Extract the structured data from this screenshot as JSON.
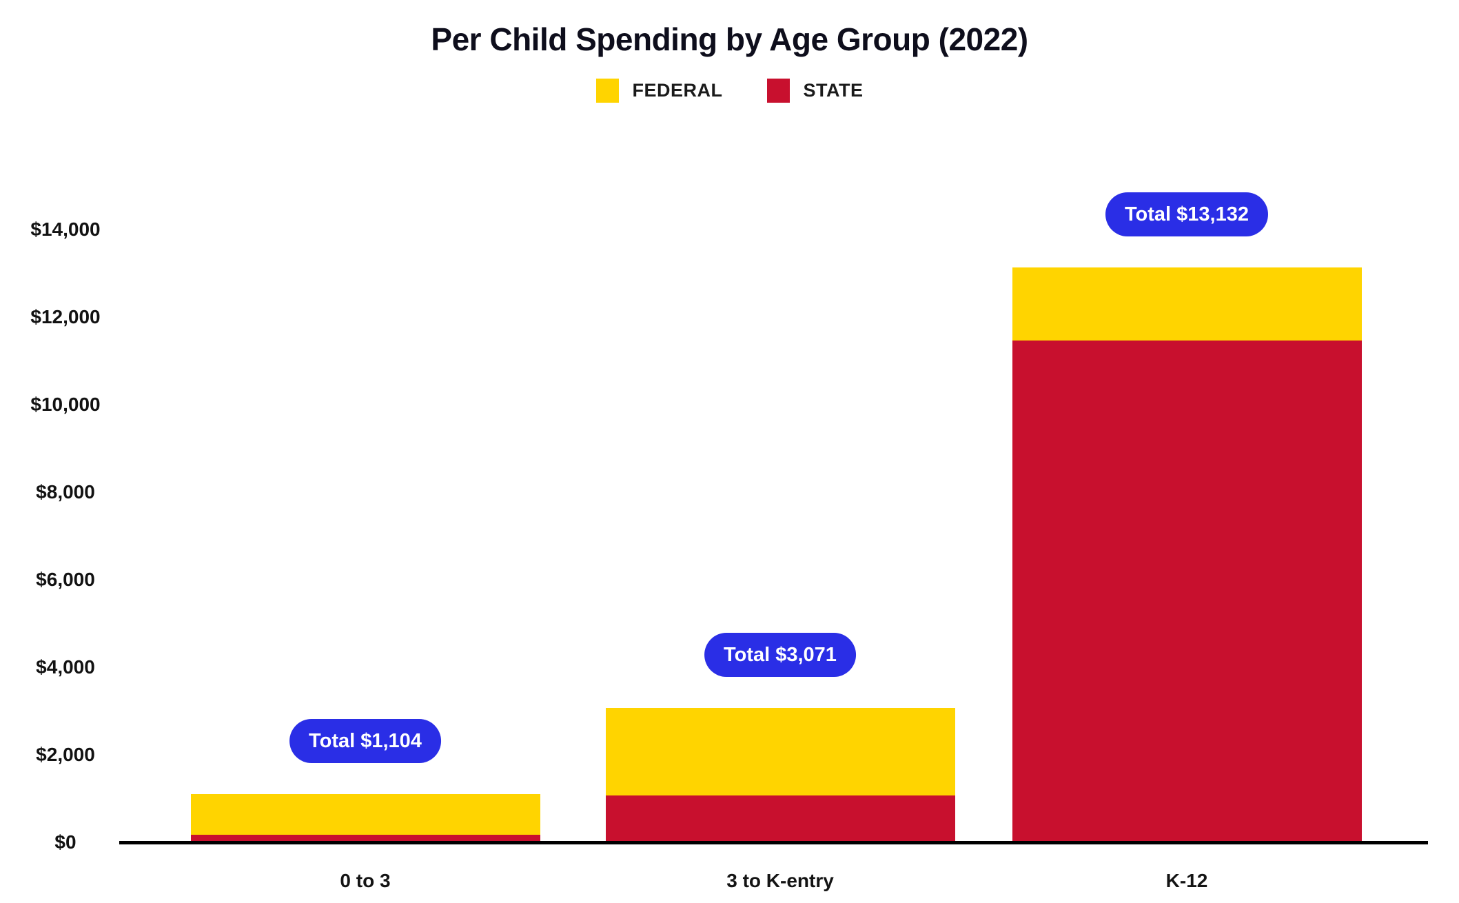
{
  "title": "Per Child Spending by Age Group (2022)",
  "colors": {
    "federal": "#FFD400",
    "state": "#C8102E",
    "badge_background": "#2A2EE6",
    "badge_text": "#FFFFFF",
    "axis": "#000000",
    "text": "#121212"
  },
  "legend": {
    "items": [
      {
        "label": "FEDERAL",
        "color": "#FFD400"
      },
      {
        "label": "STATE",
        "color": "#C8102E"
      }
    ]
  },
  "chart_data": {
    "type": "bar",
    "stacked": true,
    "title": "Per Child Spending by Age Group (2022)",
    "categories": [
      "0 to 3",
      "3 to K-entry",
      "K-12"
    ],
    "series": [
      {
        "name": "FEDERAL",
        "color": "#FFD400",
        "values": [
          926,
          2000,
          1674
        ]
      },
      {
        "name": "STATE",
        "color": "#C8102E",
        "values": [
          178,
          1071,
          11458
        ]
      }
    ],
    "totals": [
      1104,
      3071,
      13132
    ],
    "total_labels": [
      "Total $1,104",
      "Total $3,071",
      "Total $13,132"
    ],
    "xlabel": "",
    "ylabel": "",
    "ylim": [
      0,
      14000
    ],
    "y_ticks": [
      {
        "value": 0,
        "label": "$0"
      },
      {
        "value": 2000,
        "label": "$2,000"
      },
      {
        "value": 4000,
        "label": "$4,000"
      },
      {
        "value": 6000,
        "label": "$6,000"
      },
      {
        "value": 8000,
        "label": "$8,000"
      },
      {
        "value": 10000,
        "label": "$10,000"
      },
      {
        "value": 12000,
        "label": "$12,000"
      },
      {
        "value": 14000,
        "label": "$14,000"
      }
    ],
    "grid": false,
    "legend_position": "top"
  }
}
